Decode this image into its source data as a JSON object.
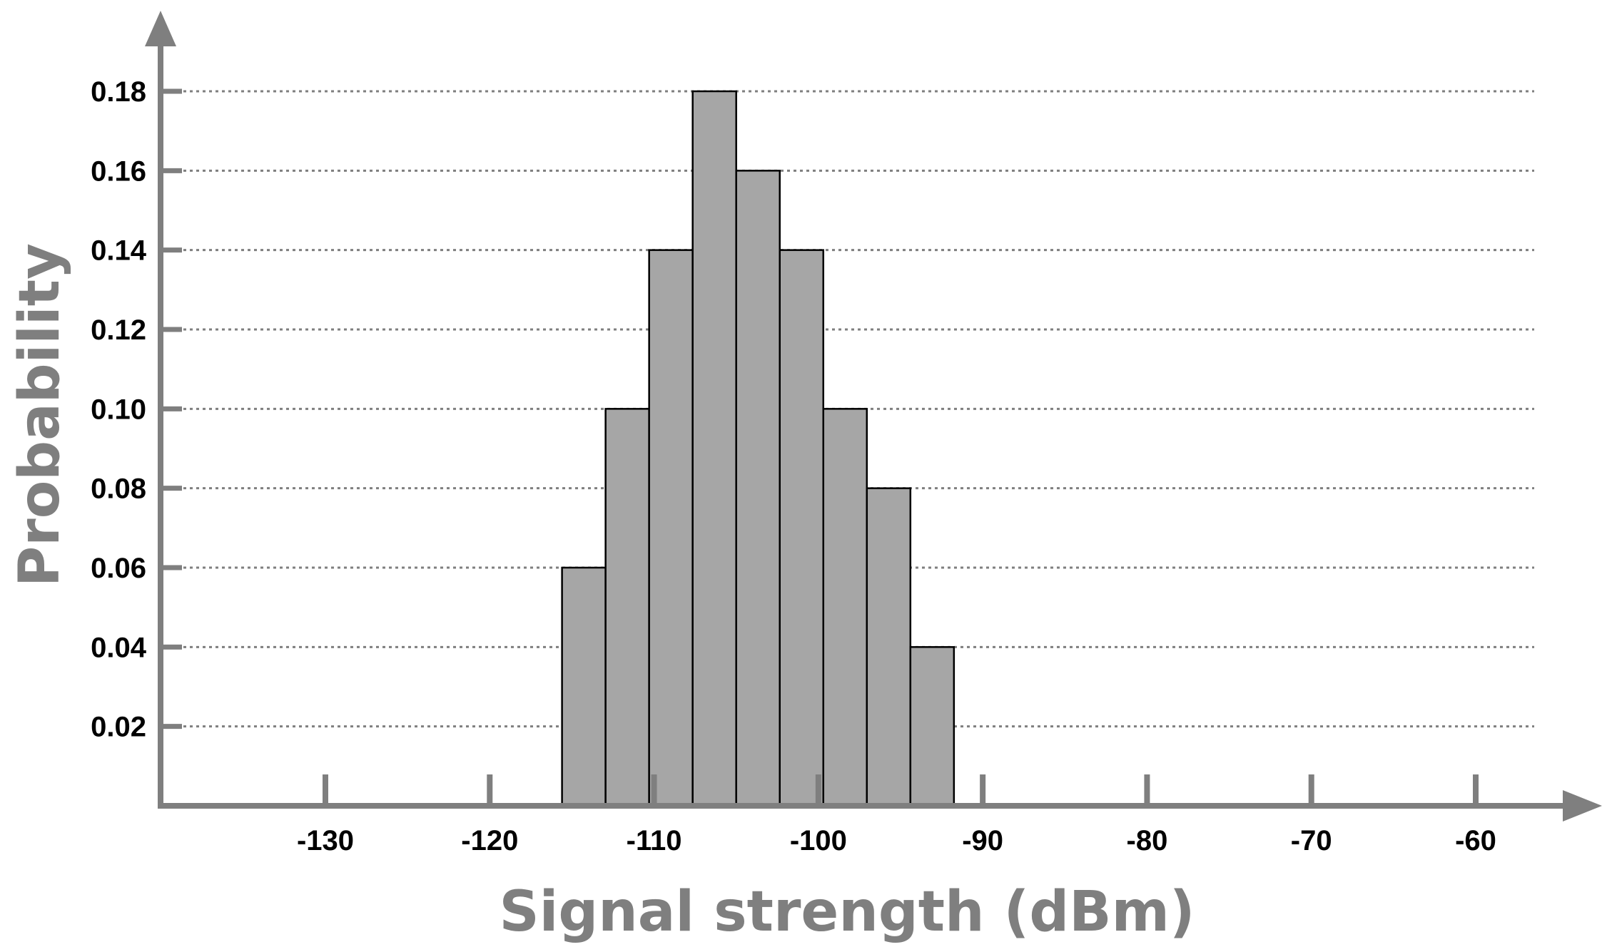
{
  "chart_data": {
    "type": "bar",
    "title": "",
    "xlabel": "Signal strength (dBm)",
    "ylabel": "Probability",
    "xlim": [
      -140,
      -53
    ],
    "ylim": [
      0,
      0.2
    ],
    "x_ticks": [
      -130,
      -120,
      -110,
      -100,
      -90,
      -80,
      -70,
      -60
    ],
    "x_tick_labels": [
      "-130",
      "-120",
      "-110",
      "-100",
      "-90",
      "-80",
      "-70",
      "-60"
    ],
    "y_ticks": [
      0.02,
      0.04,
      0.06,
      0.08,
      0.1,
      0.12,
      0.14,
      0.16,
      0.18
    ],
    "y_tick_labels": [
      "0.02",
      "0.04",
      "0.06",
      "0.08",
      "0.10",
      "0.12",
      "0.14",
      "0.16",
      "0.18"
    ],
    "bin_width": 2.65,
    "bins": [
      {
        "start": -115.6,
        "value": 0.06
      },
      {
        "start": -112.95,
        "value": 0.1
      },
      {
        "start": -110.3,
        "value": 0.14
      },
      {
        "start": -107.65,
        "value": 0.18
      },
      {
        "start": -105.0,
        "value": 0.16
      },
      {
        "start": -102.35,
        "value": 0.14
      },
      {
        "start": -99.7,
        "value": 0.1
      },
      {
        "start": -97.05,
        "value": 0.08
      },
      {
        "start": -94.4,
        "value": 0.04
      }
    ],
    "grid": "horizontal dotted",
    "legend": "none",
    "colors": {
      "bar_fill": "#a6a6a6",
      "bar_stroke": "#000000",
      "axis": "#7f7f7f",
      "grid": "#7f7f7f",
      "axis_title": "#7f7f7f",
      "tick_label": "#000000"
    }
  }
}
